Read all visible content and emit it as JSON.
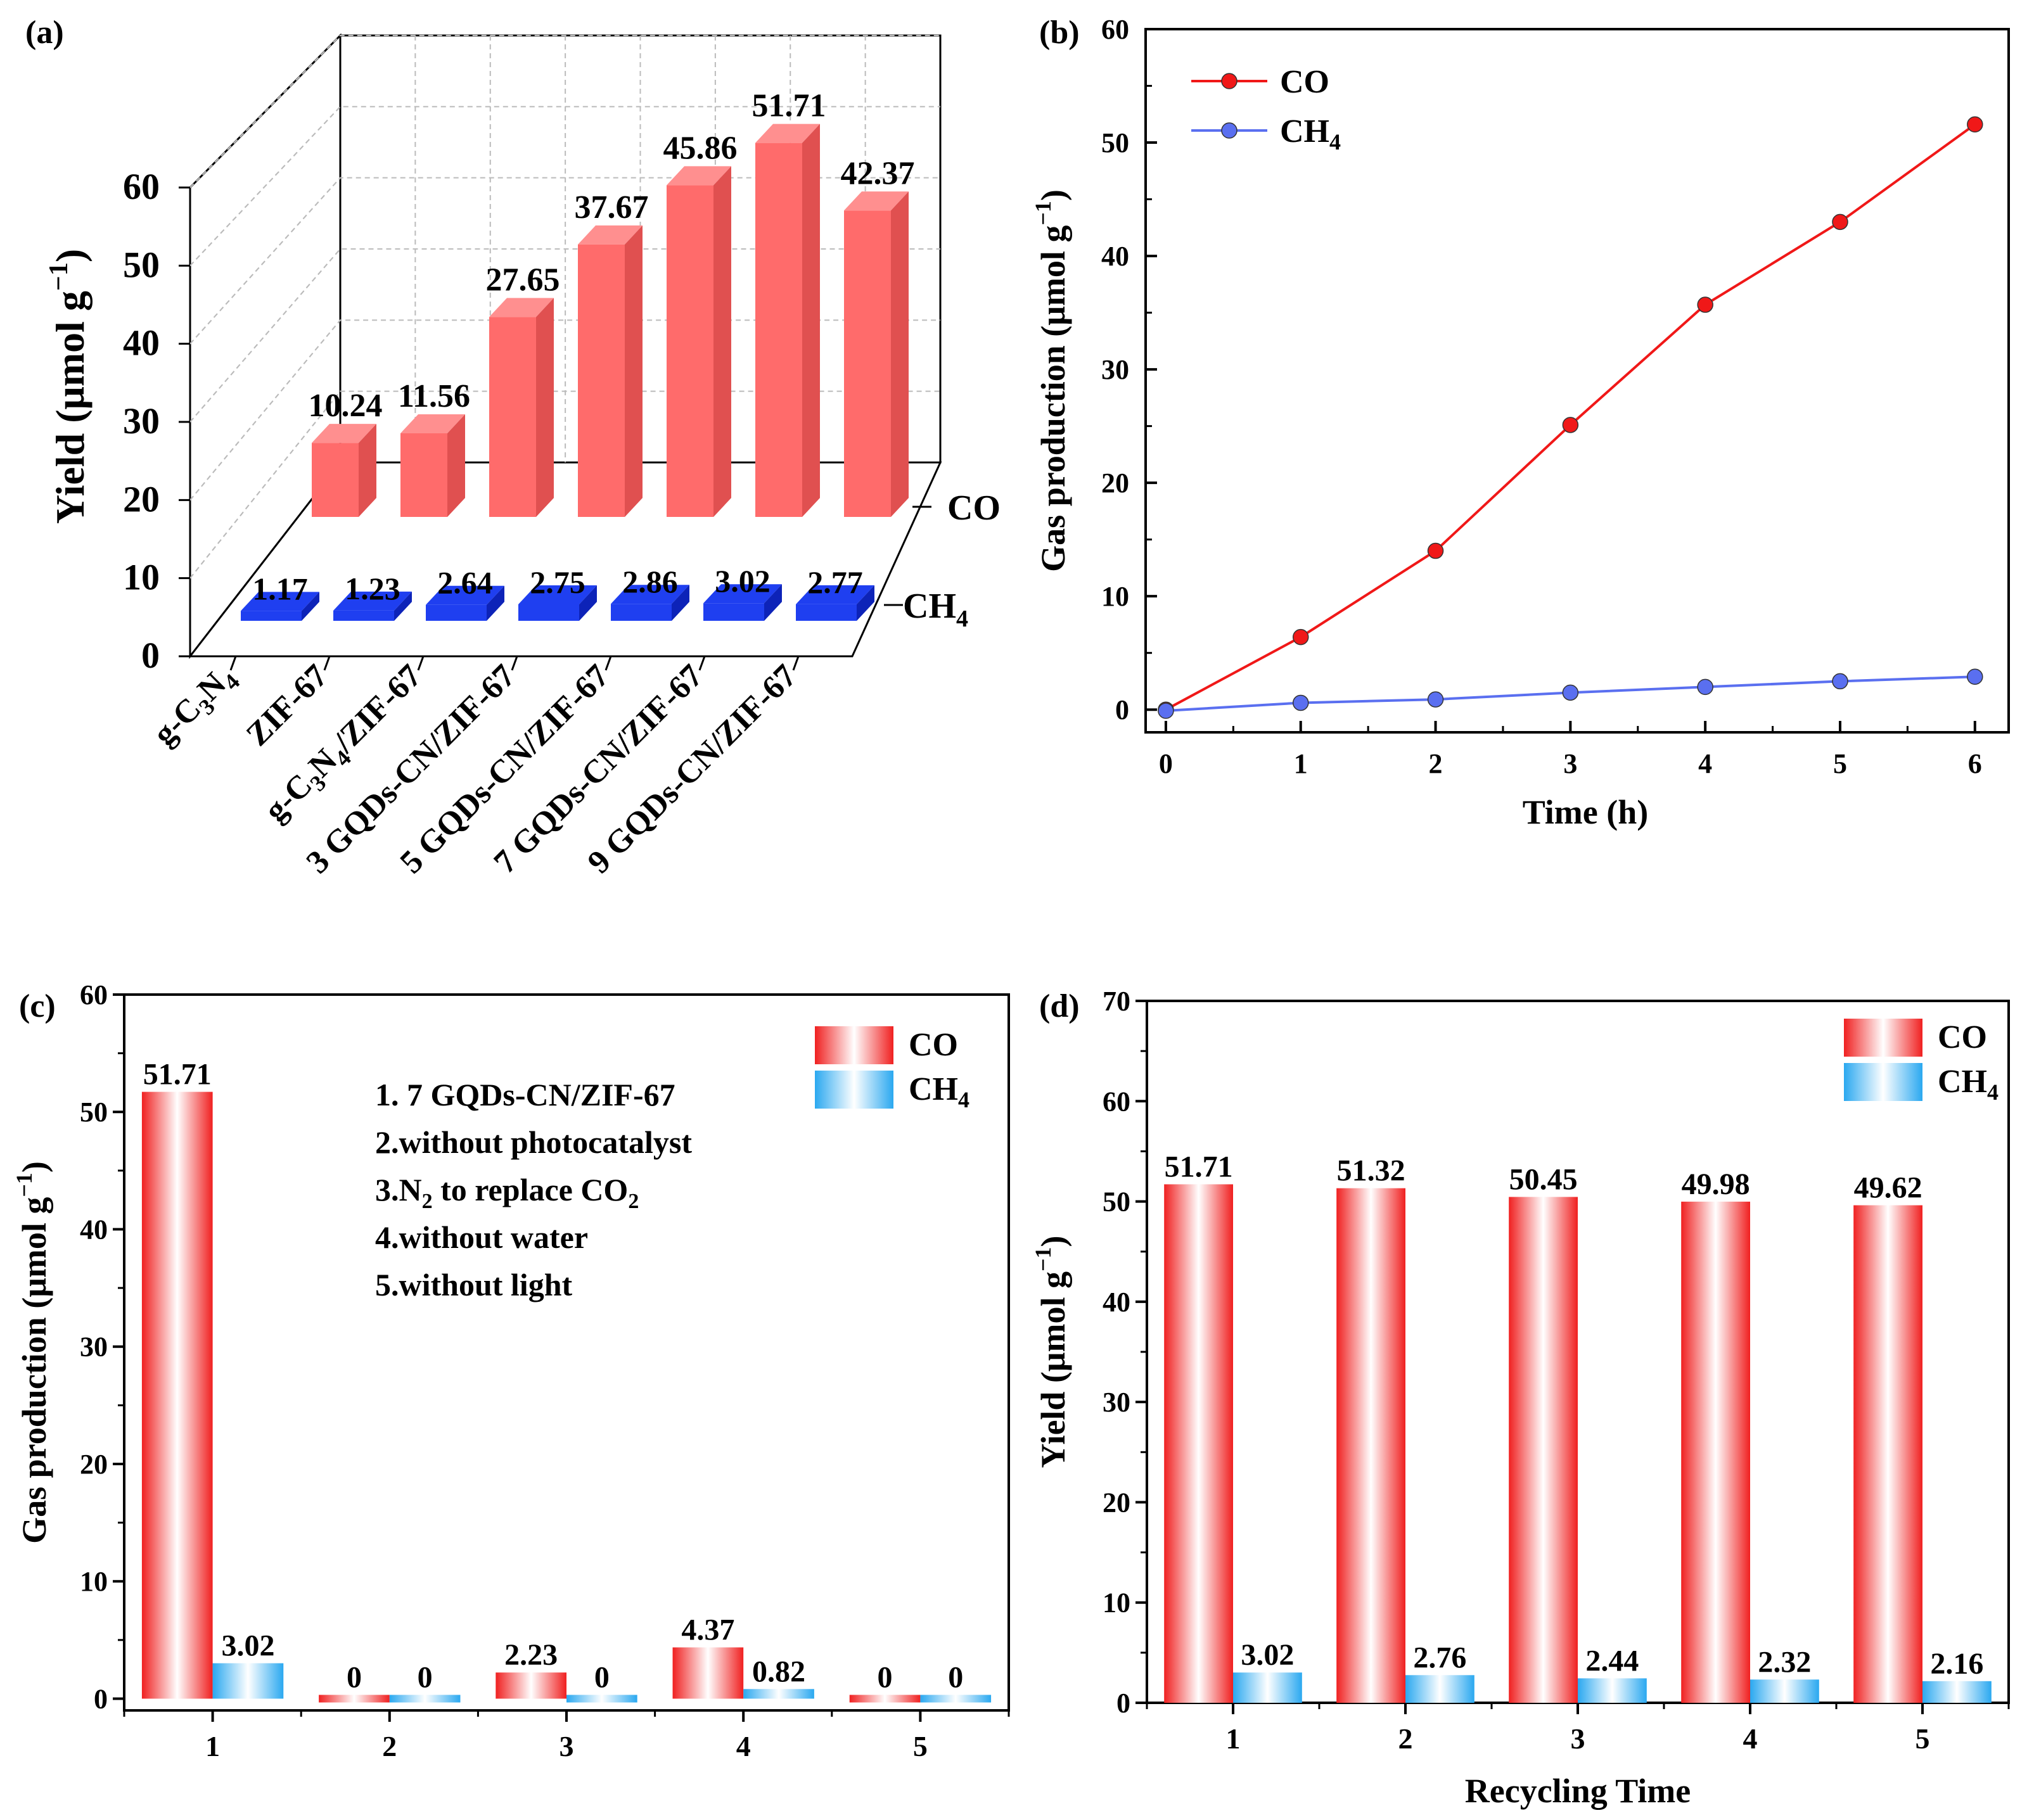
{
  "figure": {
    "panels": [
      "(a)",
      "(b)",
      "(c)",
      "(d)"
    ]
  },
  "colors": {
    "co_red": "#ff6b6b",
    "co_red_side": "#e05050",
    "co_red_top": "#ff8f8f",
    "ch4_blue": "#1f3ff0",
    "ch4_blue_side": "#0d23b8",
    "line_red": "#f01818",
    "line_blue": "#5a6ff0",
    "grad_red": "#f02020",
    "grad_blue": "#2aa8f0"
  },
  "chart_data": [
    {
      "panel": "(a)",
      "type": "bar",
      "title": "",
      "ylabel_main": "Yield (μmol g",
      "ylabel_sup": "−1",
      "ylabel_end": ")",
      "categories": [
        {
          "base": "g-C",
          "s1": "3",
          "mid": "N",
          "s2": "4",
          "tail": ""
        },
        {
          "base": "ZIF-67",
          "s1": "",
          "mid": "",
          "s2": "",
          "tail": ""
        },
        {
          "base": "g-C",
          "s1": "3",
          "mid": "N",
          "s2": "4",
          "tail": "/ZIF-67"
        },
        {
          "base": "3 GQDs-CN/ZIF-67",
          "s1": "",
          "mid": "",
          "s2": "",
          "tail": ""
        },
        {
          "base": "5 GQDs-CN/ZIF-67",
          "s1": "",
          "mid": "",
          "s2": "",
          "tail": ""
        },
        {
          "base": "7 GQDs-CN/ZIF-67",
          "s1": "",
          "mid": "",
          "s2": "",
          "tail": ""
        },
        {
          "base": "9 GQDs-CN/ZIF-67",
          "s1": "",
          "mid": "",
          "s2": "",
          "tail": ""
        }
      ],
      "series": [
        {
          "name": "CO",
          "values": [
            10.24,
            11.56,
            27.65,
            37.67,
            45.86,
            51.71,
            42.37
          ],
          "labels": [
            "10.24",
            "11.56",
            "27.65",
            "37.67",
            "45.86",
            "51.71",
            "42.37"
          ]
        },
        {
          "name": "CH4",
          "values": [
            1.17,
            1.23,
            2.64,
            2.75,
            2.86,
            3.02,
            2.77
          ],
          "labels": [
            "1.17",
            "1.23",
            "2.64",
            "2.75",
            "2.86",
            "3.02",
            "2.77"
          ]
        }
      ],
      "depth_labels": {
        "co": "CO",
        "ch4_main": "CH",
        "ch4_sub": "4"
      },
      "ylim": [
        0,
        60
      ],
      "yticks": [
        0,
        10,
        20,
        30,
        40,
        50,
        60
      ],
      "ytick_labels": [
        "0",
        "10",
        "20",
        "30",
        "40",
        "50",
        "60"
      ],
      "grid": true
    },
    {
      "panel": "(b)",
      "type": "line",
      "xlabel": "Time (h)",
      "ylabel_main": "Gas production (μmol g",
      "ylabel_sup": "−1",
      "ylabel_end": ")",
      "x": [
        0,
        1,
        2,
        3,
        4,
        5,
        6
      ],
      "series": [
        {
          "name": "CO",
          "legend_main": "CO",
          "legend_sub": "",
          "values": [
            0,
            6.4,
            14.0,
            25.1,
            35.7,
            43.0,
            51.6
          ]
        },
        {
          "name": "CH4",
          "legend_main": "CH",
          "legend_sub": "4",
          "values": [
            -0.1,
            0.6,
            0.9,
            1.5,
            2.0,
            2.5,
            2.9
          ]
        }
      ],
      "xlim": [
        -0.15,
        6.25
      ],
      "ylim": [
        -2,
        60
      ],
      "xticks": [
        0,
        1,
        2,
        3,
        4,
        5,
        6
      ],
      "xtick_labels": [
        "0",
        "1",
        "2",
        "3",
        "4",
        "5",
        "6"
      ],
      "yticks": [
        0,
        10,
        20,
        30,
        40,
        50,
        60
      ],
      "ytick_labels": [
        "0",
        "10",
        "20",
        "30",
        "40",
        "50",
        "60"
      ],
      "legend": "top-left"
    },
    {
      "panel": "(c)",
      "type": "bar",
      "ylabel_main": "Gas production (μmol g",
      "ylabel_sup": "−1",
      "ylabel_end": ")",
      "categories": [
        "1",
        "2",
        "3",
        "4",
        "5"
      ],
      "series": [
        {
          "name": "CO",
          "legend_main": "CO",
          "legend_sub": "",
          "values": [
            51.71,
            0,
            2.23,
            4.37,
            0
          ],
          "labels": [
            "51.71",
            "0",
            "2.23",
            "4.37",
            "0"
          ]
        },
        {
          "name": "CH4",
          "legend_main": "CH",
          "legend_sub": "4",
          "values": [
            3.02,
            0,
            0,
            0.82,
            0
          ],
          "labels": [
            "3.02",
            "0",
            "0",
            "0.82",
            "0"
          ]
        }
      ],
      "annotations": [
        {
          "text": "1. 7 GQDs-CN/ZIF-67",
          "sub": "",
          "after": ""
        },
        {
          "text": "2.without photocatalyst",
          "sub": "",
          "after": ""
        },
        {
          "text": "3.N",
          "sub": "2",
          "after": " to replace CO",
          "sub2": "2"
        },
        {
          "text": "4.without water",
          "sub": "",
          "after": ""
        },
        {
          "text": "5.without light",
          "sub": "",
          "after": ""
        }
      ],
      "xlim": [
        0.5,
        5.5
      ],
      "ylim": [
        -1,
        60
      ],
      "yticks": [
        0,
        10,
        20,
        30,
        40,
        50,
        60
      ],
      "ytick_labels": [
        "0",
        "10",
        "20",
        "30",
        "40",
        "50",
        "60"
      ],
      "legend": "top-right"
    },
    {
      "panel": "(d)",
      "type": "bar",
      "xlabel": "Recycling Time",
      "ylabel_main": "Yield (μmol g",
      "ylabel_sup": "−1",
      "ylabel_end": ")",
      "categories": [
        "1",
        "2",
        "3",
        "4",
        "5"
      ],
      "series": [
        {
          "name": "CO",
          "legend_main": "CO",
          "legend_sub": "",
          "values": [
            51.71,
            51.32,
            50.45,
            49.98,
            49.62
          ],
          "labels": [
            "51.71",
            "51.32",
            "50.45",
            "49.98",
            "49.62"
          ]
        },
        {
          "name": "CH4",
          "legend_main": "CH",
          "legend_sub": "4",
          "values": [
            3.02,
            2.76,
            2.44,
            2.32,
            2.16
          ],
          "labels": [
            "3.02",
            "2.76",
            "2.44",
            "2.32",
            "2.16"
          ]
        }
      ],
      "xlim": [
        0.5,
        5.5
      ],
      "ylim": [
        0,
        70
      ],
      "yticks": [
        0,
        10,
        20,
        30,
        40,
        50,
        60,
        70
      ],
      "ytick_labels": [
        "0",
        "10",
        "20",
        "30",
        "40",
        "50",
        "60",
        "70"
      ],
      "legend": "top-right"
    }
  ]
}
